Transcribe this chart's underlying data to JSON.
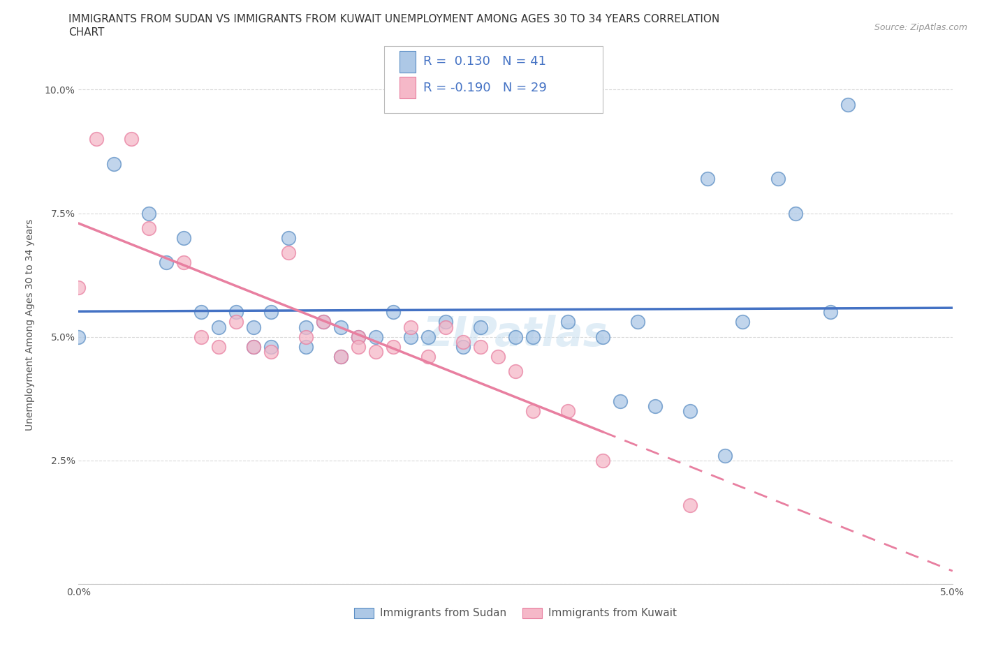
{
  "title_line1": "IMMIGRANTS FROM SUDAN VS IMMIGRANTS FROM KUWAIT UNEMPLOYMENT AMONG AGES 30 TO 34 YEARS CORRELATION",
  "title_line2": "CHART",
  "source": "Source: ZipAtlas.com",
  "ylabel": "Unemployment Among Ages 30 to 34 years",
  "xlim": [
    0.0,
    0.05
  ],
  "ylim": [
    0.0,
    0.105
  ],
  "sudan_R": 0.13,
  "sudan_N": 41,
  "kuwait_R": -0.19,
  "kuwait_N": 29,
  "sudan_color": "#adc8e6",
  "kuwait_color": "#f5b8c8",
  "sudan_edge_color": "#5b8ec4",
  "kuwait_edge_color": "#e87fa0",
  "sudan_line_color": "#4472c4",
  "kuwait_line_color": "#e87fa0",
  "sudan_scatter_x": [
    0.0,
    0.002,
    0.004,
    0.005,
    0.006,
    0.007,
    0.008,
    0.009,
    0.01,
    0.01,
    0.011,
    0.011,
    0.012,
    0.013,
    0.013,
    0.014,
    0.015,
    0.015,
    0.016,
    0.017,
    0.018,
    0.019,
    0.02,
    0.021,
    0.022,
    0.023,
    0.025,
    0.026,
    0.028,
    0.03,
    0.031,
    0.032,
    0.033,
    0.035,
    0.036,
    0.037,
    0.038,
    0.04,
    0.041,
    0.043,
    0.044
  ],
  "sudan_scatter_y": [
    0.05,
    0.085,
    0.075,
    0.065,
    0.07,
    0.055,
    0.052,
    0.055,
    0.052,
    0.048,
    0.055,
    0.048,
    0.07,
    0.052,
    0.048,
    0.053,
    0.052,
    0.046,
    0.05,
    0.05,
    0.055,
    0.05,
    0.05,
    0.053,
    0.048,
    0.052,
    0.05,
    0.05,
    0.053,
    0.05,
    0.037,
    0.053,
    0.036,
    0.035,
    0.082,
    0.026,
    0.053,
    0.082,
    0.075,
    0.055,
    0.097
  ],
  "kuwait_scatter_x": [
    0.0,
    0.001,
    0.003,
    0.004,
    0.006,
    0.007,
    0.008,
    0.009,
    0.01,
    0.011,
    0.012,
    0.013,
    0.014,
    0.015,
    0.016,
    0.016,
    0.017,
    0.018,
    0.019,
    0.02,
    0.021,
    0.022,
    0.023,
    0.024,
    0.025,
    0.026,
    0.028,
    0.03,
    0.035
  ],
  "kuwait_scatter_y": [
    0.06,
    0.09,
    0.09,
    0.072,
    0.065,
    0.05,
    0.048,
    0.053,
    0.048,
    0.047,
    0.067,
    0.05,
    0.053,
    0.046,
    0.05,
    0.048,
    0.047,
    0.048,
    0.052,
    0.046,
    0.052,
    0.049,
    0.048,
    0.046,
    0.043,
    0.035,
    0.035,
    0.025,
    0.016
  ],
  "background_color": "#ffffff",
  "grid_color": "#d0d0d0",
  "title_fontsize": 11,
  "axis_label_fontsize": 10,
  "tick_fontsize": 10,
  "legend_fontsize": 13
}
